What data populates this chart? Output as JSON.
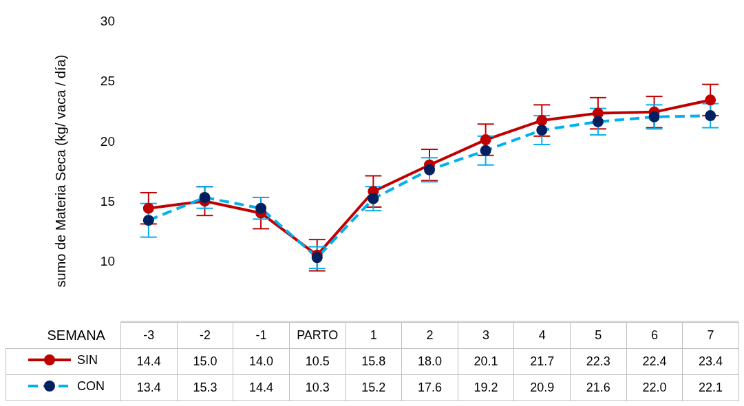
{
  "chart_data": {
    "type": "line",
    "ylabel": "sumo de Materia Seca (kg/ vaca / día)",
    "xlabel": "SEMANA",
    "categories": [
      "-3",
      "-2",
      "-1",
      "PARTO",
      "1",
      "2",
      "3",
      "4",
      "5",
      "6",
      "7"
    ],
    "ylim": [
      5,
      30
    ],
    "yticks": [
      10,
      15,
      20,
      25,
      30
    ],
    "grid": false,
    "legend": "bottom",
    "marker": "circle",
    "series": [
      {
        "name": "SIN",
        "color": "#c00000",
        "line_style": "solid",
        "values": [
          14.4,
          15.0,
          14.0,
          10.5,
          15.8,
          18.0,
          20.1,
          21.7,
          22.3,
          22.4,
          23.4
        ],
        "value_labels": [
          "14.4",
          "15.0",
          "14.0",
          "10.5",
          "15.8",
          "18.0",
          "20.1",
          "21.7",
          "22.3",
          "22.4",
          "23.4"
        ],
        "errors": [
          1.3,
          1.2,
          1.3,
          1.3,
          1.3,
          1.3,
          1.3,
          1.3,
          1.3,
          1.3,
          1.3
        ]
      },
      {
        "name": "CON",
        "color": "#00b0f0",
        "colors": [
          "#002060",
          "#002060",
          "#002060",
          "#002060",
          "#002060",
          "#002060",
          "#002060",
          "#002060",
          "#002060",
          "#002060",
          "#002060"
        ],
        "line_style": "dashed",
        "values": [
          13.4,
          15.3,
          14.4,
          10.3,
          15.2,
          17.6,
          19.2,
          20.9,
          21.6,
          22.0,
          22.1
        ],
        "value_labels": [
          "13.4",
          "15.3",
          "14.4",
          "10.3",
          "15.2",
          "17.6",
          "19.2",
          "20.9",
          "21.6",
          "22.0",
          "22.1"
        ],
        "errors": [
          1.4,
          0.9,
          0.9,
          0.9,
          1.0,
          1.0,
          1.2,
          1.2,
          1.1,
          1.0,
          1.0
        ]
      }
    ]
  }
}
